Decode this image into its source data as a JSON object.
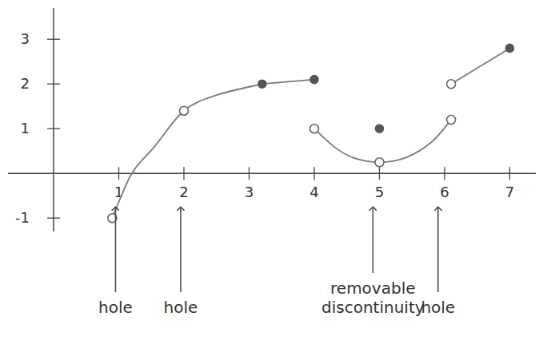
{
  "chart_data": {
    "type": "line",
    "xlim": [
      -0.7,
      7.4
    ],
    "ylim": [
      -1.3,
      3.7
    ],
    "xticks": [
      1,
      2,
      3,
      4,
      5,
      6,
      7
    ],
    "yticks": [
      -1,
      1,
      2,
      3
    ],
    "grid": false,
    "series": [
      {
        "type": "line",
        "line_style": "solid",
        "color": "#7a7a7a",
        "x": [
          0.9,
          1.2,
          1.55,
          2,
          2.5,
          3.2
        ],
        "values": [
          -1,
          0,
          0.6,
          1.4,
          1.75,
          2
        ]
      },
      {
        "type": "line",
        "line_style": "solid",
        "color": "#7a7a7a",
        "x": [
          3.2,
          4
        ],
        "values": [
          2,
          2.1
        ]
      },
      {
        "type": "line",
        "line_style": "solid",
        "color": "#7a7a7a",
        "x": [
          4,
          4.3,
          4.6,
          5,
          5.4,
          5.8,
          6.1
        ],
        "values": [
          1,
          0.6,
          0.35,
          0.25,
          0.35,
          0.7,
          1.2
        ]
      },
      {
        "type": "line",
        "line_style": "solid",
        "color": "#7a7a7a",
        "x": [
          6.1,
          7
        ],
        "values": [
          2,
          2.8
        ]
      },
      {
        "type": "scatter",
        "marker": "open-circle",
        "color": "#666666",
        "x": [
          0.9,
          2,
          4,
          5,
          6.1,
          6.1
        ],
        "values": [
          -1,
          1.4,
          1,
          0.25,
          1.2,
          2
        ]
      },
      {
        "type": "scatter",
        "marker": "filled-circle",
        "color": "#555555",
        "x": [
          3.2,
          4,
          5,
          7
        ],
        "values": [
          2,
          2.1,
          1,
          2.8
        ]
      }
    ],
    "annotations": [
      {
        "text": "hole",
        "x": 0.95
      },
      {
        "text": "hole",
        "x": 1.95
      },
      {
        "text": "removable discontinuity",
        "x": 4.9
      },
      {
        "text": "hole",
        "x": 5.9
      }
    ]
  }
}
